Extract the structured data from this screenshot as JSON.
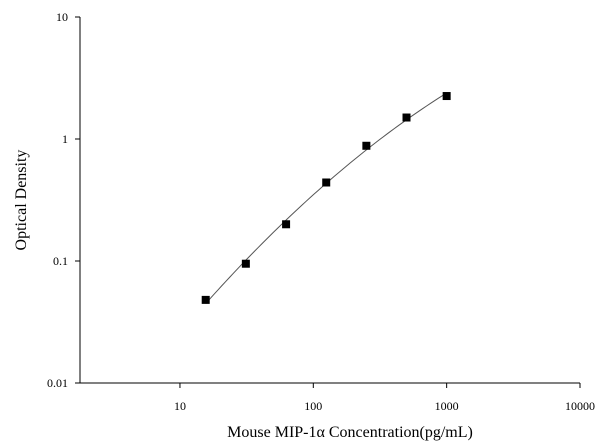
{
  "chart_data": {
    "type": "scatter",
    "x_scale": "log",
    "y_scale": "log",
    "xlabel": "Mouse MIP-1α Concentration(pg/mL)",
    "ylabel": "Optical Density",
    "xlim": [
      1.78,
      10000
    ],
    "ylim": [
      0.01,
      10
    ],
    "x_ticks": [
      10,
      100,
      1000,
      10000
    ],
    "x_tick_labels": [
      "10",
      "100",
      "1000",
      "10000"
    ],
    "y_ticks": [
      0.01,
      0.1,
      1,
      10
    ],
    "y_tick_labels": [
      "0.01",
      "0.1",
      "1",
      "10"
    ],
    "grid": false,
    "series": [
      {
        "x": [
          15.6,
          31.2,
          62.5,
          125,
          250,
          500,
          1000
        ],
        "y": [
          0.048,
          0.095,
          0.2,
          0.44,
          0.88,
          1.5,
          2.25
        ],
        "marker": "square",
        "color": "#000000",
        "fit_line": true
      }
    ]
  }
}
